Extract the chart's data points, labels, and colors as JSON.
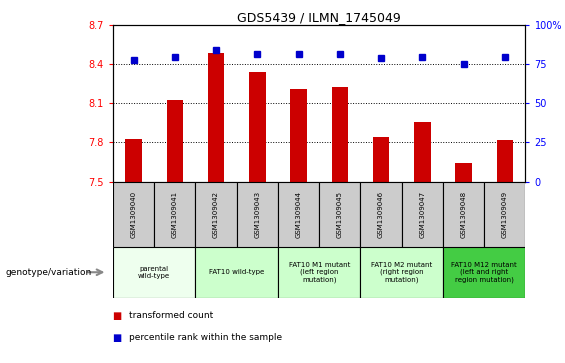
{
  "title": "GDS5439 / ILMN_1745049",
  "samples": [
    "GSM1309040",
    "GSM1309041",
    "GSM1309042",
    "GSM1309043",
    "GSM1309044",
    "GSM1309045",
    "GSM1309046",
    "GSM1309047",
    "GSM1309048",
    "GSM1309049"
  ],
  "red_values": [
    7.83,
    8.13,
    8.49,
    8.34,
    8.21,
    8.23,
    7.84,
    7.96,
    7.64,
    7.82
  ],
  "blue_values": [
    78,
    80,
    84,
    82,
    82,
    82,
    79,
    80,
    75,
    80
  ],
  "ylim_left": [
    7.5,
    8.7
  ],
  "ylim_right": [
    0,
    100
  ],
  "yticks_left": [
    7.5,
    7.8,
    8.1,
    8.4,
    8.7
  ],
  "yticks_right": [
    0,
    25,
    50,
    75,
    100
  ],
  "bar_color": "#cc0000",
  "dot_color": "#0000cc",
  "plot_bg": "#ffffff",
  "sample_box_color": "#cccccc",
  "genotype_groups": [
    {
      "label": "parental\nwild-type",
      "start": 0,
      "end": 2,
      "color": "#eeffee"
    },
    {
      "label": "FAT10 wild-type",
      "start": 2,
      "end": 4,
      "color": "#ccffcc"
    },
    {
      "label": "FAT10 M1 mutant\n(left region\nmutation)",
      "start": 4,
      "end": 6,
      "color": "#ccffcc"
    },
    {
      "label": "FAT10 M2 mutant\n(right region\nmutation)",
      "start": 6,
      "end": 8,
      "color": "#ccffcc"
    },
    {
      "label": "FAT10 M12 mutant\n(left and right\nregion mutation)",
      "start": 8,
      "end": 10,
      "color": "#44cc44"
    }
  ],
  "legend_red": "transformed count",
  "legend_blue": "percentile rank within the sample",
  "genotype_label": "genotype/variation",
  "bar_width": 0.4
}
